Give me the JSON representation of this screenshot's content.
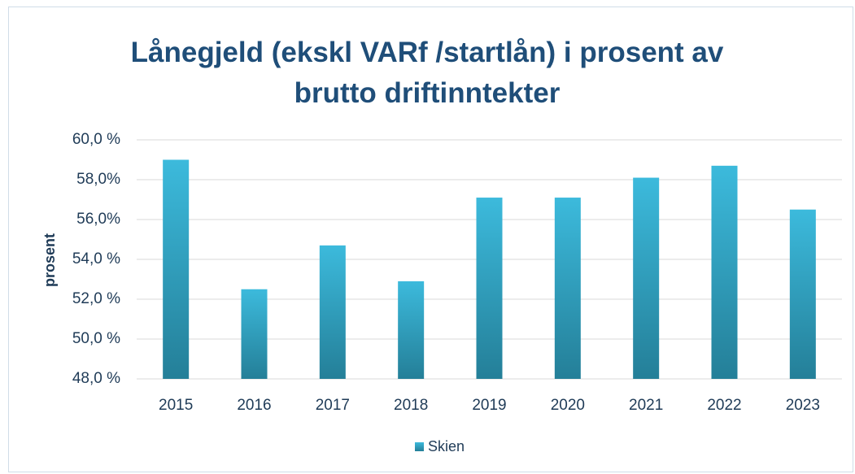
{
  "chart_data": {
    "type": "bar",
    "title": "Lånegjeld (ekskl VARf /startlån) i prosent av brutto driftinntekter",
    "y_label": "prosent",
    "categories": [
      "2015",
      "2016",
      "2017",
      "2018",
      "2019",
      "2020",
      "2021",
      "2022",
      "2023"
    ],
    "series": [
      {
        "name": "Skien",
        "color": "#2fa3c2",
        "values": [
          59.0,
          52.5,
          54.7,
          52.9,
          57.1,
          57.1,
          58.1,
          58.7,
          56.5
        ]
      }
    ],
    "ylim": [
      48,
      60
    ],
    "yticks": [
      {
        "value": 48,
        "label": "48,0 %"
      },
      {
        "value": 50,
        "label": "50,0 %"
      },
      {
        "value": 52,
        "label": "52,0 %"
      },
      {
        "value": 54,
        "label": "54,0 %"
      },
      {
        "value": 56,
        "label": "56,0%"
      },
      {
        "value": 58,
        "label": "58,0%"
      },
      {
        "value": 60,
        "label": "60,0 %"
      }
    ],
    "grid": true,
    "legend": "bottom"
  }
}
